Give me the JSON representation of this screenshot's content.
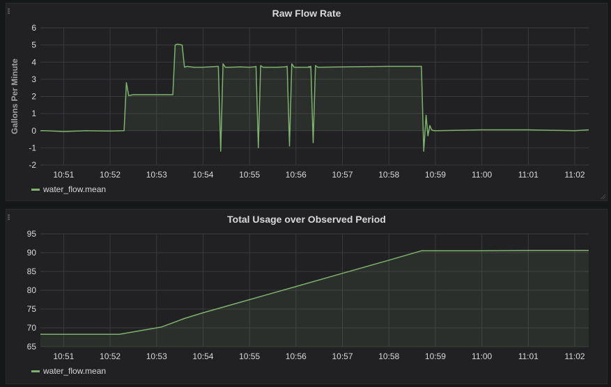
{
  "colors": {
    "series": "#7eb26d",
    "grid": "#3a3a3e",
    "text": "#d8d9da",
    "panel": "#212124"
  },
  "chart_data": [
    {
      "type": "line",
      "title": "Raw Flow Rate",
      "xlabel": "",
      "ylabel": "Gallons Per Minute",
      "ylim": [
        -2,
        6
      ],
      "yticks": [
        "6",
        "5",
        "4",
        "3",
        "2",
        "1",
        "0",
        "-1",
        "-2"
      ],
      "xticks": [
        "10:51",
        "10:52",
        "10:53",
        "10:54",
        "10:55",
        "10:56",
        "10:57",
        "10:58",
        "10:59",
        "11:00",
        "11:01",
        "11:02"
      ],
      "grid": true,
      "legend_position": "bottom-left",
      "legend": [
        "water_flow.mean"
      ],
      "series": [
        {
          "name": "water_flow.mean",
          "x": [
            10.5,
            10.6,
            11.0,
            11.5,
            12.0,
            12.3,
            12.35,
            12.4,
            12.5,
            13.0,
            13.35,
            13.4,
            13.45,
            13.55,
            13.6,
            13.65,
            13.8,
            14.0,
            14.33,
            14.38,
            14.43,
            14.48,
            14.53,
            14.58,
            14.8,
            15.0,
            15.1,
            15.14,
            15.19,
            15.24,
            15.29,
            15.34,
            15.6,
            15.76,
            15.81,
            15.86,
            15.91,
            15.96,
            16.01,
            16.3,
            16.27,
            16.32,
            16.37,
            16.42,
            16.47,
            16.52,
            17.0,
            18.0,
            18.7,
            18.75,
            18.8,
            18.84,
            18.88,
            18.92,
            18.97,
            19.05,
            20.0,
            21.0,
            22.0,
            22.3
          ],
          "values": [
            0.0,
            0.0,
            -0.05,
            0.0,
            -0.02,
            0.0,
            2.8,
            2.05,
            2.1,
            2.1,
            2.1,
            5.0,
            5.05,
            5.0,
            3.7,
            3.75,
            3.7,
            3.7,
            3.75,
            -1.2,
            3.9,
            3.7,
            3.7,
            3.7,
            3.72,
            3.7,
            3.72,
            3.75,
            -1.0,
            3.8,
            3.7,
            3.7,
            3.7,
            3.72,
            3.75,
            -0.9,
            3.9,
            3.7,
            3.7,
            3.7,
            3.72,
            3.75,
            -0.7,
            3.8,
            3.7,
            3.7,
            3.72,
            3.75,
            3.75,
            -1.2,
            0.9,
            -0.3,
            0.3,
            0.05,
            0.0,
            0.0,
            0.05,
            0.05,
            0.0,
            0.05
          ]
        }
      ]
    },
    {
      "type": "area",
      "title": "Total Usage over Observed Period",
      "xlabel": "",
      "ylabel": "",
      "ylim": [
        65,
        95
      ],
      "yticks": [
        "95",
        "90",
        "85",
        "80",
        "75",
        "70",
        "65"
      ],
      "xticks": [
        "10:51",
        "10:52",
        "10:53",
        "10:54",
        "10:55",
        "10:56",
        "10:57",
        "10:58",
        "10:59",
        "11:00",
        "11:01",
        "11:02"
      ],
      "grid": true,
      "legend_position": "bottom-left",
      "legend": [
        "water_flow.mean"
      ],
      "series": [
        {
          "name": "water_flow.mean",
          "x": [
            10.5,
            12.2,
            13.1,
            13.6,
            14.0,
            15.0,
            16.0,
            17.0,
            18.0,
            18.7,
            20.0,
            21.0,
            22.3
          ],
          "values": [
            68.3,
            68.3,
            70.2,
            72.5,
            74.0,
            77.5,
            81.0,
            84.5,
            88.0,
            90.5,
            90.5,
            90.6,
            90.6
          ]
        }
      ]
    }
  ]
}
